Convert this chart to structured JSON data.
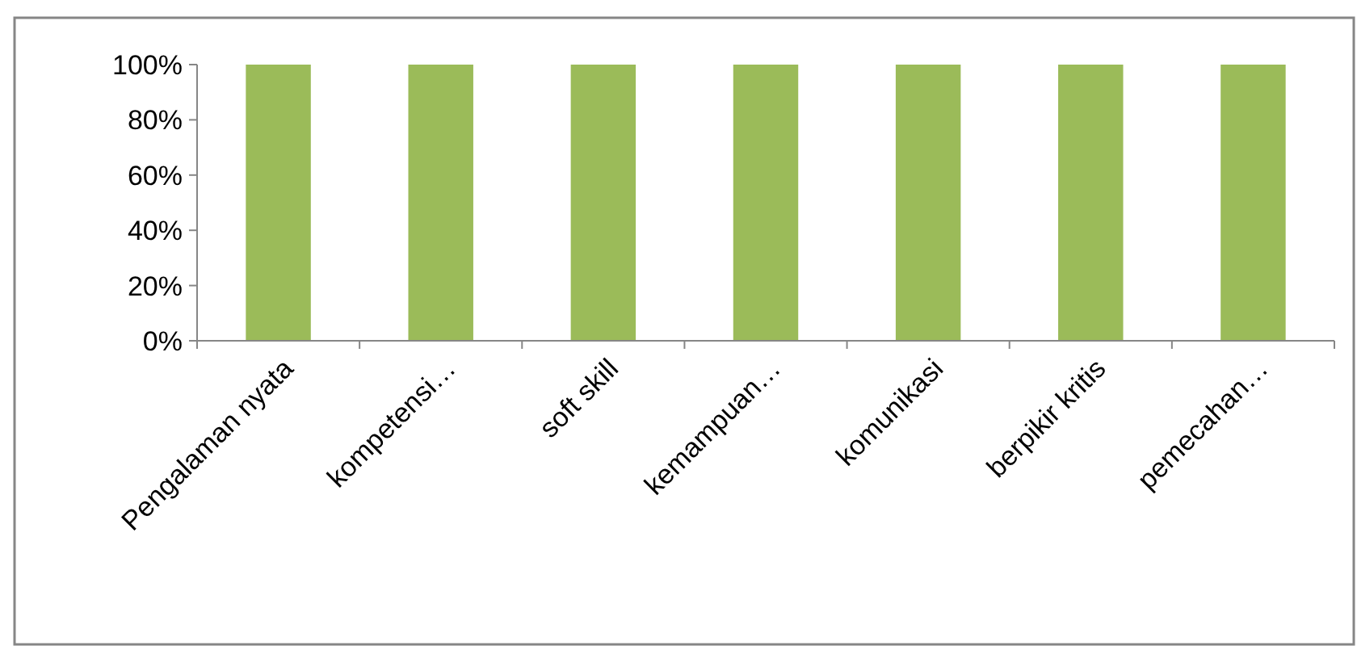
{
  "chart_data": {
    "type": "bar",
    "categories": [
      "Pengalaman nyata",
      "kompetensi…",
      "soft skill",
      "kemampuan…",
      "komunikasi",
      "berpikir kritis",
      "pemecahan…"
    ],
    "values": [
      100,
      100,
      100,
      100,
      100,
      100,
      100
    ],
    "color": "#9bbb59",
    "ylim": [
      0,
      100
    ],
    "yticks": [
      {
        "value": 0,
        "label": "0%"
      },
      {
        "value": 20,
        "label": "20%"
      },
      {
        "value": 40,
        "label": "40%"
      },
      {
        "value": 60,
        "label": "60%"
      },
      {
        "value": 80,
        "label": "80%"
      },
      {
        "value": 100,
        "label": "100%"
      }
    ],
    "grid": false
  }
}
